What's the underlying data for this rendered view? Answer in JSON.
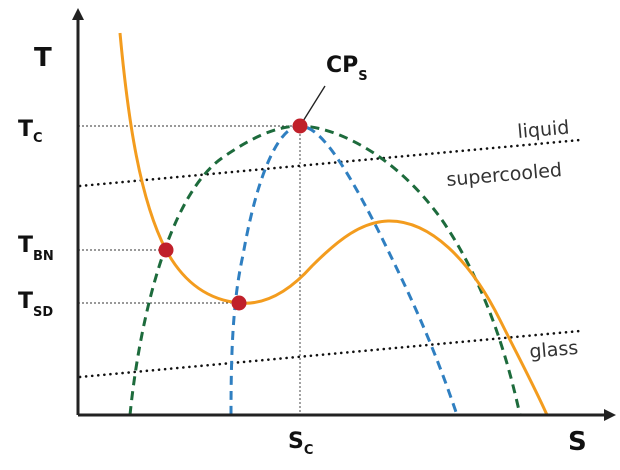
{
  "axes": {
    "x_label": "S",
    "y_label": "T"
  },
  "ticks": {
    "tc": {
      "main": "T",
      "sub": "C"
    },
    "tbn": {
      "main": "T",
      "sub": "BN"
    },
    "tsd": {
      "main": "T",
      "sub": "SD"
    },
    "sc": {
      "main": "S",
      "sub": "C"
    }
  },
  "annotations": {
    "critical_point": {
      "main": "CP",
      "sub": "S"
    },
    "liquid": "liquid",
    "supercooled": "supercooled",
    "glass": "glass"
  },
  "colors": {
    "isobar": "#f39c1e",
    "binodal": "#1d6b3c",
    "spinodal": "#2f7fc1",
    "points": "#c0202a",
    "axes": "#222222",
    "dotted_lines": "#111111"
  }
}
